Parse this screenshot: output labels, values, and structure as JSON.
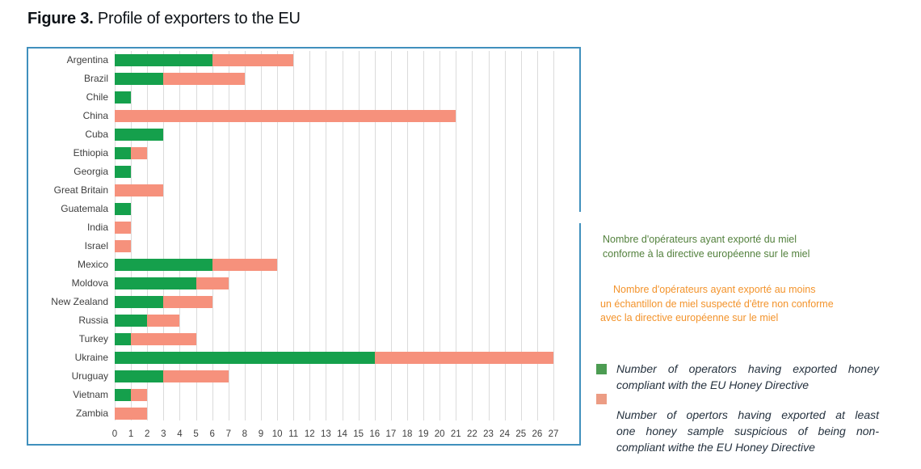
{
  "title": {
    "prefix": "Figure 3.",
    "text": "Profile of exporters to the EU"
  },
  "chart_data": {
    "type": "bar",
    "orientation": "horizontal",
    "stacked": true,
    "grid": true,
    "xlim": [
      0,
      27
    ],
    "x_ticks": [
      0,
      1,
      2,
      3,
      4,
      5,
      6,
      7,
      8,
      9,
      10,
      11,
      12,
      13,
      14,
      15,
      16,
      17,
      18,
      19,
      20,
      21,
      22,
      23,
      24,
      25,
      26,
      27
    ],
    "categories": [
      "Argentina",
      "Brazil",
      "Chile",
      "China",
      "Cuba",
      "Ethiopia",
      "Georgia",
      "Great Britain",
      "Guatemala",
      "India",
      "Israel",
      "Mexico",
      "Moldova",
      "New Zealand",
      "Russia",
      "Turkey",
      "Ukraine",
      "Uruguay",
      "Vietnam",
      "Zambia"
    ],
    "series": [
      {
        "name": "Number of operators having exported honey compliant with the EU Honey Directive",
        "color": "#15A04C",
        "values": [
          6,
          3,
          1,
          0,
          3,
          1,
          1,
          0,
          1,
          0,
          0,
          6,
          5,
          3,
          2,
          1,
          16,
          3,
          1,
          0
        ]
      },
      {
        "name": "Number of opertors having exported at least one honey sample suspicious of being non-compliant withe the EU Honey Directive",
        "color": "#F6917C",
        "values": [
          5,
          5,
          0,
          21,
          0,
          1,
          0,
          3,
          0,
          1,
          1,
          4,
          2,
          3,
          2,
          4,
          11,
          4,
          1,
          2
        ]
      }
    ]
  },
  "legend": {
    "fr_compliant": {
      "lines": [
        "Nombre d'opérateurs ayant exporté du miel",
        "conforme à la directive européenne sur le miel"
      ]
    },
    "fr_suspicious": {
      "lines": [
        "Nombre d'opérateurs ayant exporté au moins",
        "un échantillon de miel suspecté d'être non conforme",
        "avec la directive européenne sur le miel"
      ]
    },
    "en_compliant": {
      "lines": [
        "Number of operators having exported honey",
        "compliant with the EU Honey Directive"
      ]
    },
    "en_suspicious": {
      "lines": [
        "Number of opertors having exported at least",
        "one honey sample suspicious of being non-",
        "compliant withe the EU Honey Directive"
      ]
    }
  },
  "colors": {
    "title_text": "#0D1217",
    "box_border": "#4090BD",
    "gridline": "#DBDBDB",
    "axis_text": "#3E3E3E",
    "fr_compliant_text": "#53813D",
    "fr_suspicious_text": "#F3932B",
    "en_text": "#24313E",
    "swatch_compliant": "#4C9C52",
    "swatch_suspicious": "#EC9C84"
  }
}
